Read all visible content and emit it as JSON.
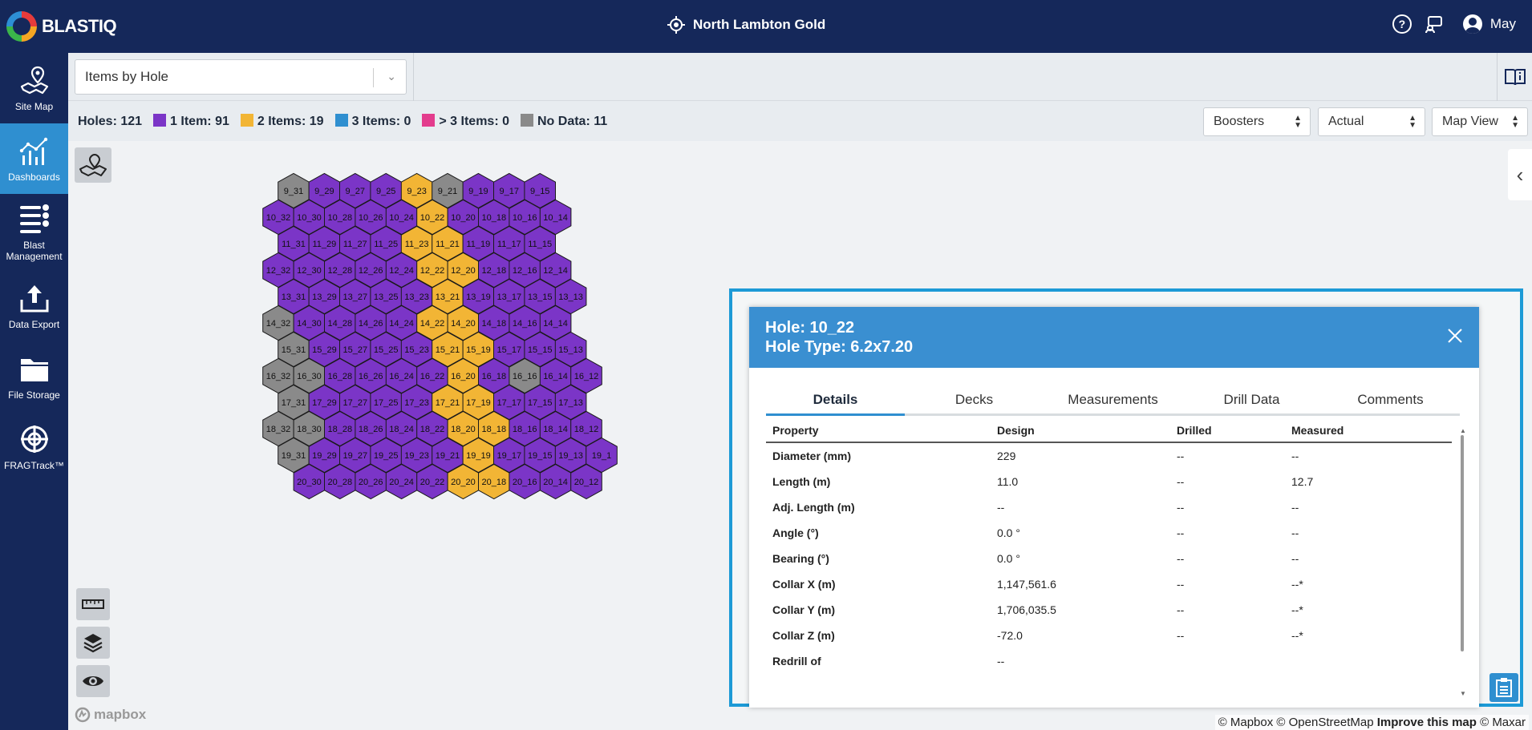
{
  "app": {
    "logo_text": "BLASTIQ",
    "site_name": "North Lambton Gold",
    "user_name": "May"
  },
  "sidebar": {
    "items": [
      {
        "label": "Site Map",
        "icon": "site-map-icon"
      },
      {
        "label": "Dashboards",
        "icon": "dashboards-icon",
        "active": true
      },
      {
        "label": "Blast Management",
        "icon": "blast-management-icon"
      },
      {
        "label": "Data Export",
        "icon": "data-export-icon"
      },
      {
        "label": "File Storage",
        "icon": "folder-icon"
      },
      {
        "label": "FRAGTrack™",
        "icon": "fragtrack-icon"
      }
    ]
  },
  "toolbar": {
    "items_select": "Items by Hole",
    "boosters": "Boosters",
    "actual": "Actual",
    "map_view": "Map View"
  },
  "legend": {
    "holes": "Holes: 121",
    "item1": "1 Item: 91",
    "item2": "2 Items: 19",
    "item3": "3 Items: 0",
    "item_more": "> 3 Items: 0",
    "no_data": "No Data: 11"
  },
  "colors": {
    "one_item": "#7b35c7",
    "two_items": "#f2b535",
    "three_items": "#2f8fd0",
    "more_items": "#e33c8d",
    "no_data": "#8a8a8a",
    "nav": "#15285a",
    "accent": "#2f8fd0"
  },
  "map": {
    "rows": [
      {
        "row": 9,
        "holes": [
          [
            "9_31",
            "n"
          ],
          [
            "9_29",
            "1"
          ],
          [
            "9_27",
            "1"
          ],
          [
            "9_25",
            "1"
          ],
          [
            "9_23",
            "2"
          ],
          [
            "9_21",
            "n"
          ],
          [
            "9_19",
            "1"
          ],
          [
            "9_17",
            "1"
          ],
          [
            "9_15",
            "1"
          ]
        ]
      },
      {
        "row": 10,
        "holes": [
          [
            "10_32",
            "1"
          ],
          [
            "10_30",
            "1"
          ],
          [
            "10_28",
            "1"
          ],
          [
            "10_26",
            "1"
          ],
          [
            "10_24",
            "1"
          ],
          [
            "10_22",
            "2"
          ],
          [
            "10_20",
            "1"
          ],
          [
            "10_18",
            "1"
          ],
          [
            "10_16",
            "1"
          ],
          [
            "10_14",
            "1"
          ]
        ]
      },
      {
        "row": 11,
        "holes": [
          [
            "11_31",
            "1"
          ],
          [
            "11_29",
            "1"
          ],
          [
            "11_27",
            "1"
          ],
          [
            "11_25",
            "1"
          ],
          [
            "11_23",
            "2"
          ],
          [
            "11_21",
            "2"
          ],
          [
            "11_19",
            "1"
          ],
          [
            "11_17",
            "1"
          ],
          [
            "11_15",
            "1"
          ]
        ]
      },
      {
        "row": 12,
        "holes": [
          [
            "12_32",
            "1"
          ],
          [
            "12_30",
            "1"
          ],
          [
            "12_28",
            "1"
          ],
          [
            "12_26",
            "1"
          ],
          [
            "12_24",
            "1"
          ],
          [
            "12_22",
            "2"
          ],
          [
            "12_20",
            "2"
          ],
          [
            "12_18",
            "1"
          ],
          [
            "12_16",
            "1"
          ],
          [
            "12_14",
            "1"
          ]
        ]
      },
      {
        "row": 13,
        "holes": [
          [
            "13_31",
            "1"
          ],
          [
            "13_29",
            "1"
          ],
          [
            "13_27",
            "1"
          ],
          [
            "13_25",
            "1"
          ],
          [
            "13_23",
            "1"
          ],
          [
            "13_21",
            "2"
          ],
          [
            "13_19",
            "1"
          ],
          [
            "13_17",
            "1"
          ],
          [
            "13_15",
            "1"
          ],
          [
            "13_13",
            "1"
          ]
        ]
      },
      {
        "row": 14,
        "holes": [
          [
            "14_32",
            "n"
          ],
          [
            "14_30",
            "1"
          ],
          [
            "14_28",
            "1"
          ],
          [
            "14_26",
            "1"
          ],
          [
            "14_24",
            "1"
          ],
          [
            "14_22",
            "2"
          ],
          [
            "14_20",
            "2"
          ],
          [
            "14_18",
            "1"
          ],
          [
            "14_16",
            "1"
          ],
          [
            "14_14",
            "1"
          ]
        ]
      },
      {
        "row": 15,
        "holes": [
          [
            "15_31",
            "n"
          ],
          [
            "15_29",
            "1"
          ],
          [
            "15_27",
            "1"
          ],
          [
            "15_25",
            "1"
          ],
          [
            "15_23",
            "1"
          ],
          [
            "15_21",
            "2"
          ],
          [
            "15_19",
            "2"
          ],
          [
            "15_17",
            "1"
          ],
          [
            "15_15",
            "1"
          ],
          [
            "15_13",
            "1"
          ]
        ]
      },
      {
        "row": 16,
        "holes": [
          [
            "16_32",
            "n"
          ],
          [
            "16_30",
            "n"
          ],
          [
            "16_28",
            "1"
          ],
          [
            "16_26",
            "1"
          ],
          [
            "16_24",
            "1"
          ],
          [
            "16_22",
            "1"
          ],
          [
            "16_20",
            "2"
          ],
          [
            "16_18",
            "1"
          ],
          [
            "16_16",
            "n"
          ],
          [
            "16_14",
            "1"
          ],
          [
            "16_12",
            "1"
          ]
        ]
      },
      {
        "row": 17,
        "holes": [
          [
            "17_31",
            "n"
          ],
          [
            "17_29",
            "1"
          ],
          [
            "17_27",
            "1"
          ],
          [
            "17_25",
            "1"
          ],
          [
            "17_23",
            "1"
          ],
          [
            "17_21",
            "2"
          ],
          [
            "17_19",
            "2"
          ],
          [
            "17_17",
            "1"
          ],
          [
            "17_15",
            "1"
          ],
          [
            "17_13",
            "1"
          ]
        ]
      },
      {
        "row": 18,
        "holes": [
          [
            "18_32",
            "n"
          ],
          [
            "18_30",
            "n"
          ],
          [
            "18_28",
            "1"
          ],
          [
            "18_26",
            "1"
          ],
          [
            "18_24",
            "1"
          ],
          [
            "18_22",
            "1"
          ],
          [
            "18_20",
            "2"
          ],
          [
            "18_18",
            "2"
          ],
          [
            "18_16",
            "1"
          ],
          [
            "18_14",
            "1"
          ],
          [
            "18_12",
            "1"
          ]
        ]
      },
      {
        "row": 19,
        "holes": [
          [
            "19_31",
            "n"
          ],
          [
            "19_29",
            "1"
          ],
          [
            "19_27",
            "1"
          ],
          [
            "19_25",
            "1"
          ],
          [
            "19_23",
            "1"
          ],
          [
            "19_21",
            "1"
          ],
          [
            "19_19",
            "2"
          ],
          [
            "19_17",
            "1"
          ],
          [
            "19_15",
            "1"
          ],
          [
            "19_13",
            "1"
          ],
          [
            "19_1",
            "1"
          ]
        ]
      },
      {
        "row": 20,
        "holes": [
          [
            "20_30",
            "1"
          ],
          [
            "20_28",
            "1"
          ],
          [
            "20_26",
            "1"
          ],
          [
            "20_24",
            "1"
          ],
          [
            "20_22",
            "1"
          ],
          [
            "20_20",
            "2"
          ],
          [
            "20_18",
            "2"
          ],
          [
            "20_16",
            "1"
          ],
          [
            "20_14",
            "1"
          ],
          [
            "20_12",
            "1"
          ]
        ]
      }
    ],
    "mapbox_label": "mapbox",
    "attribution": {
      "mapbox": "© Mapbox",
      "osm": "© OpenStreetMap",
      "improve": "Improve this map",
      "maxar": "© Maxar"
    }
  },
  "popup": {
    "hole_title": "Hole: 10_22",
    "hole_type": "Hole Type: 6.2x7.20",
    "tabs": [
      "Details",
      "Decks",
      "Measurements",
      "Drill Data",
      "Comments"
    ],
    "columns": [
      "Property",
      "Design",
      "Drilled",
      "Measured"
    ],
    "rows": [
      [
        "Diameter (mm)",
        "229",
        "--",
        "--"
      ],
      [
        "Length (m)",
        "11.0",
        "--",
        "12.7"
      ],
      [
        "Adj. Length (m)",
        "--",
        "--",
        "--"
      ],
      [
        "Angle (°)",
        "0.0 °",
        "--",
        "--"
      ],
      [
        "Bearing (°)",
        "0.0 °",
        "--",
        "--"
      ],
      [
        "Collar X (m)",
        "1,147,561.6",
        "--",
        "--*"
      ],
      [
        "Collar Y (m)",
        "1,706,035.5",
        "--",
        "--*"
      ],
      [
        "Collar Z (m)",
        "-72.0",
        "--",
        "--*"
      ],
      [
        "Redrill of",
        "--",
        "",
        ""
      ]
    ]
  }
}
